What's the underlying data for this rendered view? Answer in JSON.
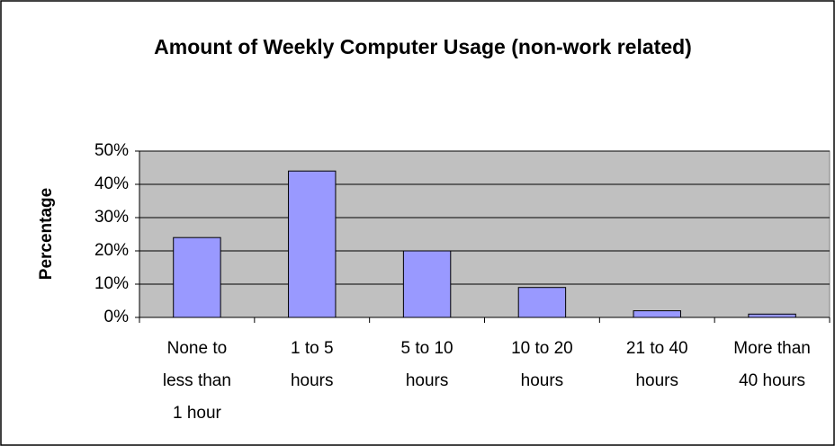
{
  "chart_data": {
    "type": "bar",
    "title": "Amount of Weekly Computer Usage (non-work related)",
    "y_label": "Percentage",
    "categories": [
      "None to less than 1 hour",
      "1 to 5 hours",
      "5 to 10 hours",
      "10 to 20 hours",
      "21 to 40 hours",
      "More than 40 hours"
    ],
    "values": [
      24,
      44,
      20,
      9,
      2,
      1
    ],
    "color": "#9999ff",
    "ylim": [
      0,
      50
    ],
    "yticks": [
      {
        "value": 0,
        "label": "0%"
      },
      {
        "value": 10,
        "label": "10%"
      },
      {
        "value": 20,
        "label": "20%"
      },
      {
        "value": 30,
        "label": "30%"
      },
      {
        "value": 40,
        "label": "40%"
      },
      {
        "value": 50,
        "label": "50%"
      }
    ],
    "grid": true
  }
}
